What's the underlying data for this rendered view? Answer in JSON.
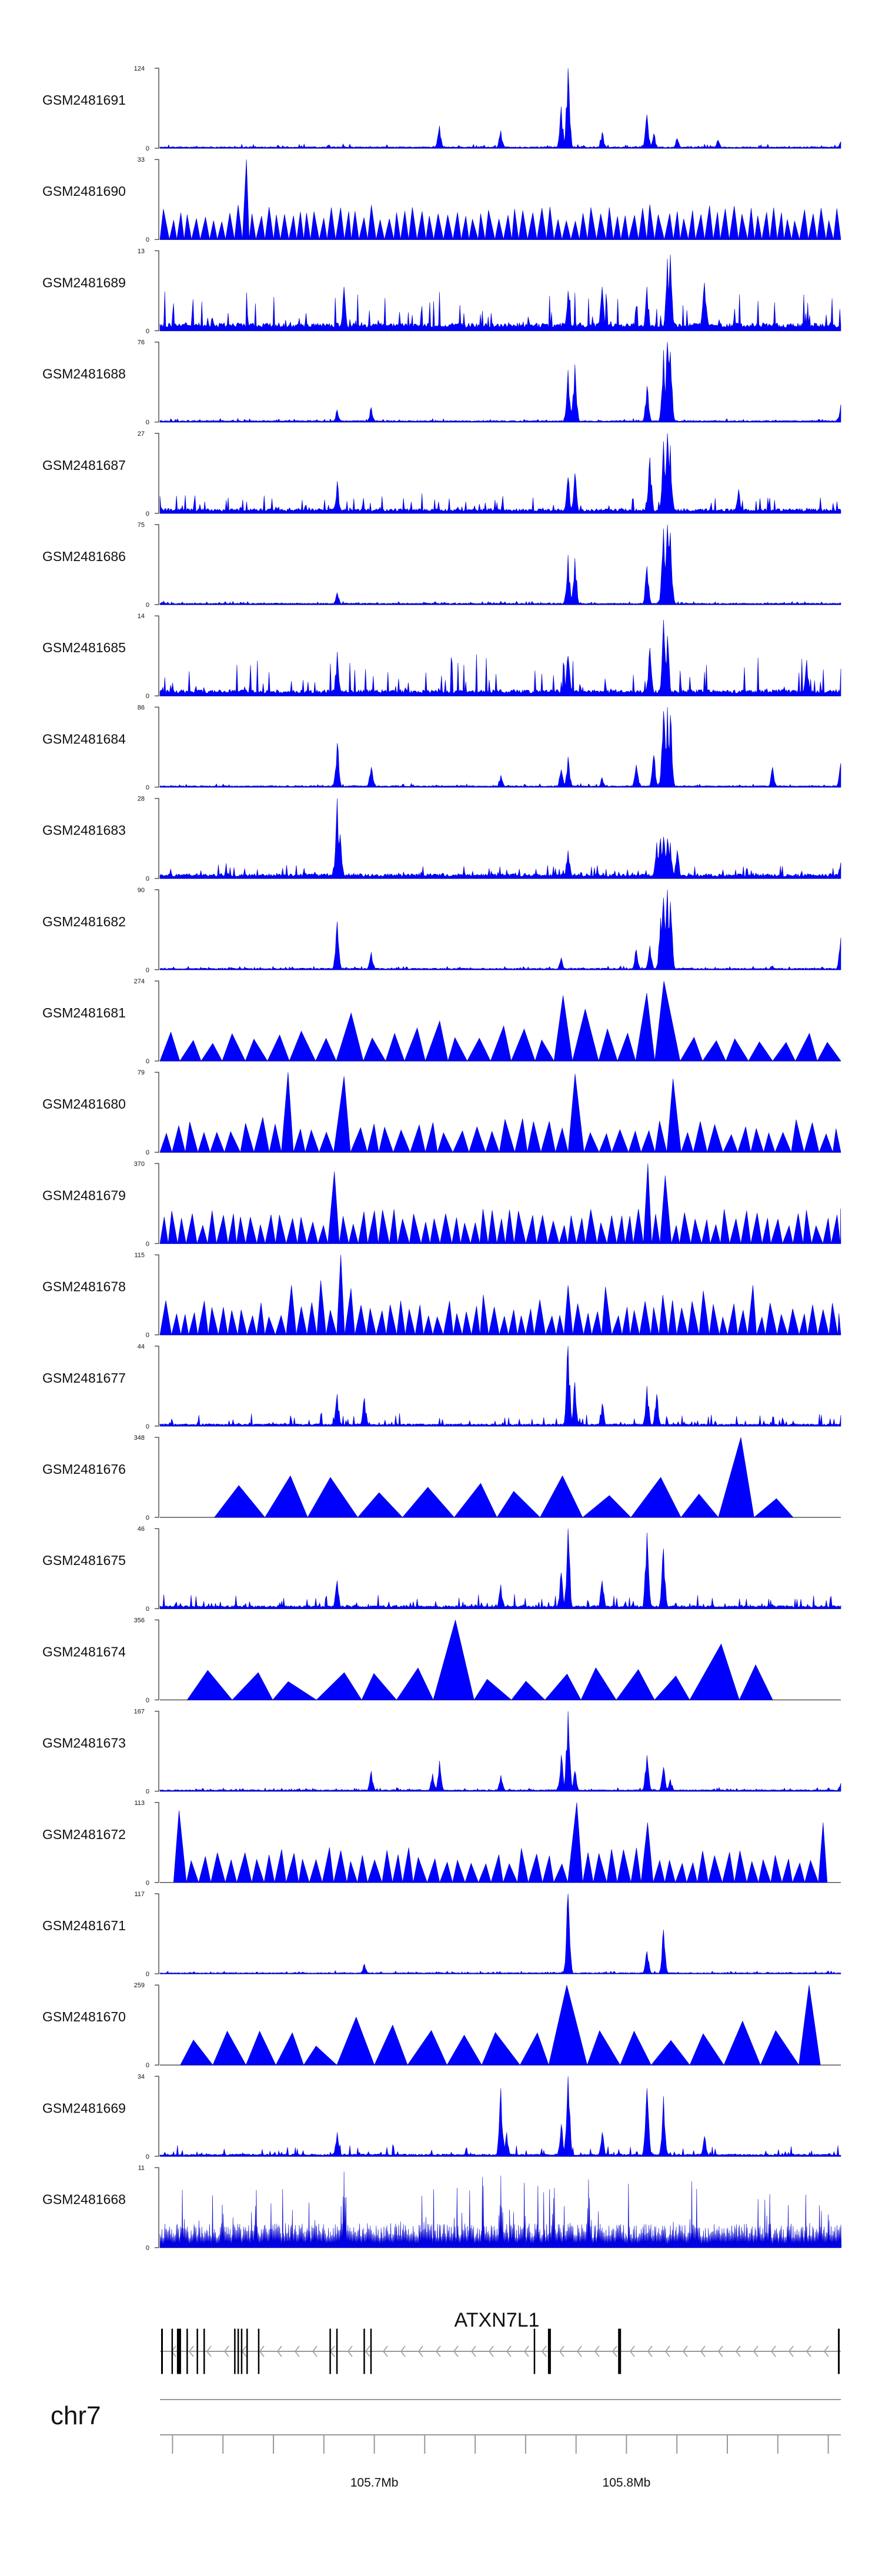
{
  "chart_data": {
    "type": "area",
    "title": "",
    "colors": {
      "coverage": "#0000ff",
      "axis": "#555555",
      "gene_structure": "#9a9a9a",
      "exon": "#000000"
    },
    "x_range": [
      105615000,
      105885000
    ],
    "tracks": [
      {
        "name": "GSM2481691",
        "ymax": 124,
        "ymin": 0,
        "style": "spiky",
        "baseline": 0.02,
        "noise": 0.04,
        "peaks": [
          [
            0.41,
            0.28
          ],
          [
            0.5,
            0.22
          ],
          [
            0.59,
            0.52
          ],
          [
            0.6,
            1.0
          ],
          [
            0.65,
            0.2
          ],
          [
            0.715,
            0.42
          ],
          [
            0.725,
            0.18
          ],
          [
            0.76,
            0.12
          ],
          [
            0.82,
            0.1
          ],
          [
            1.0,
            0.08
          ]
        ]
      },
      {
        "name": "GSM2481690",
        "ymax": 33,
        "ymin": 0,
        "style": "triangles",
        "density": 82,
        "peaks": [
          [
            0.13,
            1.0
          ]
        ]
      },
      {
        "name": "GSM2481689",
        "ymax": 13,
        "ymin": 0,
        "style": "spiky",
        "baseline": 0.1,
        "noise": 0.42,
        "peaks": [
          [
            0.27,
            0.55
          ],
          [
            0.6,
            0.5
          ],
          [
            0.65,
            0.55
          ],
          [
            0.715,
            0.55
          ],
          [
            0.745,
            0.9
          ],
          [
            0.75,
            0.95
          ],
          [
            0.8,
            0.6
          ]
        ]
      },
      {
        "name": "GSM2481688",
        "ymax": 76,
        "ymin": 0,
        "style": "spiky",
        "baseline": 0.02,
        "noise": 0.03,
        "peaks": [
          [
            0.26,
            0.15
          ],
          [
            0.31,
            0.18
          ],
          [
            0.6,
            0.65
          ],
          [
            0.61,
            0.72
          ],
          [
            0.715,
            0.45
          ],
          [
            0.74,
            0.9
          ],
          [
            0.745,
            1.0
          ],
          [
            0.75,
            0.88
          ],
          [
            1.0,
            0.22
          ]
        ]
      },
      {
        "name": "GSM2481687",
        "ymax": 27,
        "ymin": 0,
        "style": "spiky",
        "baseline": 0.06,
        "noise": 0.2,
        "peaks": [
          [
            0.26,
            0.4
          ],
          [
            0.6,
            0.45
          ],
          [
            0.61,
            0.5
          ],
          [
            0.72,
            0.7
          ],
          [
            0.74,
            0.9
          ],
          [
            0.745,
            1.0
          ],
          [
            0.75,
            0.85
          ],
          [
            0.85,
            0.3
          ]
        ]
      },
      {
        "name": "GSM2481686",
        "ymax": 75,
        "ymin": 0,
        "style": "spiky",
        "baseline": 0.02,
        "noise": 0.03,
        "peaks": [
          [
            0.26,
            0.15
          ],
          [
            0.6,
            0.62
          ],
          [
            0.61,
            0.58
          ],
          [
            0.715,
            0.48
          ],
          [
            0.74,
            0.95
          ],
          [
            0.745,
            1.0
          ],
          [
            0.75,
            0.9
          ]
        ]
      },
      {
        "name": "GSM2481685",
        "ymax": 14,
        "ymin": 0,
        "style": "spiky",
        "baseline": 0.08,
        "noise": 0.45,
        "peaks": [
          [
            0.26,
            0.55
          ],
          [
            0.6,
            0.5
          ],
          [
            0.72,
            0.6
          ],
          [
            0.74,
            0.95
          ],
          [
            0.745,
            0.75
          ],
          [
            0.95,
            0.45
          ]
        ]
      },
      {
        "name": "GSM2481684",
        "ymax": 86,
        "ymin": 0,
        "style": "spiky",
        "baseline": 0.02,
        "noise": 0.03,
        "peaks": [
          [
            0.26,
            0.55
          ],
          [
            0.31,
            0.25
          ],
          [
            0.5,
            0.15
          ],
          [
            0.59,
            0.22
          ],
          [
            0.6,
            0.38
          ],
          [
            0.65,
            0.12
          ],
          [
            0.7,
            0.28
          ],
          [
            0.725,
            0.4
          ],
          [
            0.74,
            0.95
          ],
          [
            0.745,
            1.0
          ],
          [
            0.75,
            0.9
          ],
          [
            0.9,
            0.25
          ],
          [
            1.0,
            0.3
          ]
        ]
      },
      {
        "name": "GSM2481683",
        "ymax": 28,
        "ymin": 0,
        "style": "spiky",
        "baseline": 0.06,
        "noise": 0.14,
        "peaks": [
          [
            0.26,
            1.0
          ],
          [
            0.265,
            0.55
          ],
          [
            0.6,
            0.35
          ],
          [
            0.73,
            0.45
          ],
          [
            0.735,
            0.5
          ],
          [
            0.74,
            0.52
          ],
          [
            0.745,
            0.5
          ],
          [
            0.75,
            0.45
          ],
          [
            0.76,
            0.35
          ],
          [
            1.0,
            0.2
          ]
        ]
      },
      {
        "name": "GSM2481682",
        "ymax": 90,
        "ymin": 0,
        "style": "spiky",
        "baseline": 0.02,
        "noise": 0.03,
        "peaks": [
          [
            0.26,
            0.6
          ],
          [
            0.31,
            0.22
          ],
          [
            0.59,
            0.15
          ],
          [
            0.7,
            0.25
          ],
          [
            0.72,
            0.3
          ],
          [
            0.735,
            0.65
          ],
          [
            0.74,
            0.9
          ],
          [
            0.745,
            1.0
          ],
          [
            0.75,
            0.85
          ],
          [
            0.9,
            0.05
          ],
          [
            1.0,
            0.4
          ]
        ]
      },
      {
        "name": "GSM2481681",
        "ymax": 274,
        "ymin": 0,
        "style": "triangles",
        "density": 30,
        "peaks": [
          [
            0.29,
            0.6
          ],
          [
            0.39,
            0.5
          ],
          [
            0.58,
            0.82
          ],
          [
            0.605,
            0.8
          ],
          [
            0.63,
            0.65
          ],
          [
            0.71,
            0.85
          ],
          [
            0.74,
            1.0
          ],
          [
            0.75,
            0.62
          ]
        ]
      },
      {
        "name": "GSM2481680",
        "ymax": 79,
        "ymin": 0,
        "style": "triangles",
        "density": 48,
        "peaks": [
          [
            0.18,
            1.0
          ],
          [
            0.27,
            0.95
          ],
          [
            0.6,
            0.98
          ],
          [
            0.76,
            0.92
          ]
        ]
      },
      {
        "name": "GSM2481679",
        "ymax": 370,
        "ymin": 0,
        "style": "triangles",
        "density": 68,
        "peaks": [
          [
            0.26,
            0.9
          ],
          [
            0.3,
            0.4
          ],
          [
            0.6,
            0.35
          ],
          [
            0.715,
            1.0
          ],
          [
            0.74,
            0.85
          ],
          [
            0.9,
            0.25
          ]
        ]
      },
      {
        "name": "GSM2481678",
        "ymax": 115,
        "ymin": 0,
        "style": "triangles",
        "density": 70,
        "peaks": [
          [
            0.19,
            0.62
          ],
          [
            0.24,
            0.68
          ],
          [
            0.26,
            1.0
          ],
          [
            0.285,
            0.58
          ],
          [
            0.48,
            0.5
          ],
          [
            0.6,
            0.62
          ],
          [
            0.66,
            0.6
          ],
          [
            0.74,
            0.5
          ],
          [
            0.8,
            0.55
          ],
          [
            0.87,
            0.62
          ]
        ]
      },
      {
        "name": "GSM2481677",
        "ymax": 44,
        "ymin": 0,
        "style": "spiky",
        "baseline": 0.03,
        "noise": 0.14,
        "peaks": [
          [
            0.26,
            0.4
          ],
          [
            0.3,
            0.35
          ],
          [
            0.6,
            1.0
          ],
          [
            0.61,
            0.55
          ],
          [
            0.65,
            0.28
          ],
          [
            0.715,
            0.5
          ],
          [
            0.73,
            0.4
          ]
        ]
      },
      {
        "name": "GSM2481676",
        "ymax": 348,
        "ymin": 0,
        "style": "triangles",
        "density": 13,
        "range": [
          0.08,
          0.93
        ],
        "peaks": [
          [
            0.17,
            0.52
          ],
          [
            0.29,
            0.5
          ],
          [
            0.6,
            0.52
          ],
          [
            0.745,
            0.5
          ],
          [
            0.84,
            1.0
          ],
          [
            0.85,
            0.45
          ]
        ]
      },
      {
        "name": "GSM2481675",
        "ymax": 46,
        "ymin": 0,
        "style": "spiky",
        "baseline": 0.04,
        "noise": 0.15,
        "peaks": [
          [
            0.26,
            0.35
          ],
          [
            0.5,
            0.3
          ],
          [
            0.59,
            0.45
          ],
          [
            0.6,
            1.0
          ],
          [
            0.65,
            0.35
          ],
          [
            0.715,
            0.95
          ],
          [
            0.74,
            0.75
          ]
        ]
      },
      {
        "name": "GSM2481674",
        "ymax": 356,
        "ymin": 0,
        "style": "triangles",
        "density": 14,
        "range": [
          0.04,
          0.9
        ],
        "peaks": [
          [
            0.35,
            0.4
          ],
          [
            0.45,
            1.0
          ],
          [
            0.7,
            0.38
          ],
          [
            0.77,
            0.3
          ],
          [
            0.8,
            0.7
          ]
        ]
      },
      {
        "name": "GSM2481673",
        "ymax": 167,
        "ymin": 0,
        "style": "spiky",
        "baseline": 0.02,
        "noise": 0.03,
        "peaks": [
          [
            0.31,
            0.25
          ],
          [
            0.4,
            0.22
          ],
          [
            0.41,
            0.38
          ],
          [
            0.5,
            0.2
          ],
          [
            0.59,
            0.45
          ],
          [
            0.6,
            1.0
          ],
          [
            0.61,
            0.25
          ],
          [
            0.715,
            0.45
          ],
          [
            0.74,
            0.3
          ],
          [
            0.75,
            0.15
          ],
          [
            1.0,
            0.1
          ]
        ]
      },
      {
        "name": "GSM2481672",
        "ymax": 113,
        "ymin": 0,
        "style": "triangles",
        "density": 52,
        "range": [
          0.02,
          0.98
        ],
        "peaks": [
          [
            0.03,
            0.9
          ],
          [
            0.6,
            1.0
          ],
          [
            0.62,
            0.6
          ],
          [
            0.72,
            0.75
          ],
          [
            0.97,
            0.75
          ]
        ]
      },
      {
        "name": "GSM2481671",
        "ymax": 117,
        "ymin": 0,
        "style": "spiky",
        "baseline": 0.015,
        "noise": 0.025,
        "peaks": [
          [
            0.3,
            0.12
          ],
          [
            0.6,
            1.0
          ],
          [
            0.715,
            0.28
          ],
          [
            0.74,
            0.55
          ]
        ]
      },
      {
        "name": "GSM2481670",
        "ymax": 259,
        "ymin": 0,
        "style": "triangles",
        "density": 19,
        "range": [
          0.03,
          0.97
        ],
        "peaks": [
          [
            0.26,
            0.6
          ],
          [
            0.6,
            1.0
          ],
          [
            0.945,
            1.0
          ],
          [
            0.87,
            0.55
          ],
          [
            0.36,
            0.5
          ]
        ]
      },
      {
        "name": "GSM2481669",
        "ymax": 34,
        "ymin": 0,
        "style": "spiky",
        "baseline": 0.03,
        "noise": 0.12,
        "peaks": [
          [
            0.26,
            0.3
          ],
          [
            0.5,
            0.85
          ],
          [
            0.51,
            0.3
          ],
          [
            0.59,
            0.4
          ],
          [
            0.6,
            1.0
          ],
          [
            0.65,
            0.3
          ],
          [
            0.715,
            0.85
          ],
          [
            0.74,
            0.75
          ],
          [
            0.8,
            0.25
          ]
        ]
      },
      {
        "name": "GSM2481668",
        "ymax": 11,
        "ymin": 0,
        "style": "bars",
        "baseline": 0.3,
        "noise": 0.6,
        "peaks": [
          [
            0.27,
            0.95
          ],
          [
            0.5,
            0.9
          ],
          [
            0.63,
            0.85
          ]
        ]
      }
    ],
    "gene": {
      "name": "ATXN7L1",
      "strand": "-",
      "exons": [
        [
          0.003,
          2
        ],
        [
          0.018,
          1.5
        ],
        [
          0.028,
          6
        ],
        [
          0.04,
          1.5
        ],
        [
          0.055,
          1.5
        ],
        [
          0.065,
          1.5
        ],
        [
          0.11,
          1.5
        ],
        [
          0.115,
          1.5
        ],
        [
          0.12,
          1.5
        ],
        [
          0.128,
          1.5
        ],
        [
          0.145,
          1.5
        ],
        [
          0.25,
          1.5
        ],
        [
          0.26,
          1.5
        ],
        [
          0.3,
          1.5
        ],
        [
          0.31,
          1.5
        ],
        [
          0.55,
          1.5
        ],
        [
          0.572,
          4
        ],
        [
          0.675,
          4
        ],
        [
          0.997,
          2
        ]
      ]
    },
    "ideogram": {
      "chromosome": "chr7"
    },
    "axis": {
      "ticks": [
        105620000,
        105640000,
        105660000,
        105680000,
        105700000,
        105720000,
        105740000,
        105760000,
        105780000,
        105800000,
        105820000,
        105840000,
        105860000,
        105880000
      ],
      "tick_labels": [
        {
          "value": 105700000,
          "label": "105.7Mb"
        },
        {
          "value": 105800000,
          "label": "105.8Mb"
        }
      ]
    }
  }
}
